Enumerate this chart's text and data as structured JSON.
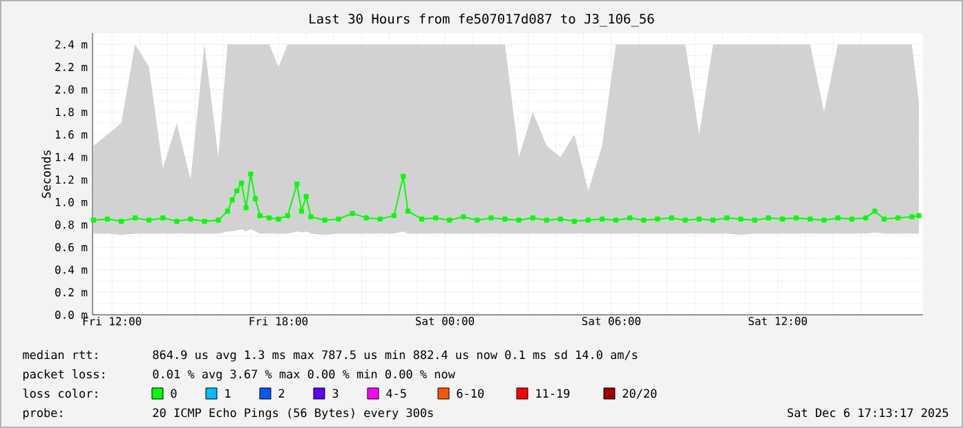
{
  "chart_data": {
    "type": "line",
    "title": "Last 30 Hours from fe507017d087 to J3_106_56",
    "ylabel": "Seconds",
    "legend_title": "loss color:",
    "legend": "bottom",
    "grid": true,
    "marker": "square",
    "line_style": "solid",
    "xlim": [
      "2025-12-05T11:18",
      "2025-12-06T17:14"
    ],
    "xticks": [
      {
        "value": "2025-12-05T12:00",
        "label": "Fri 12:00"
      },
      {
        "value": "2025-12-05T15:00",
        "label": null
      },
      {
        "value": "2025-12-05T18:00",
        "label": "Fri 18:00"
      },
      {
        "value": "2025-12-05T21:00",
        "label": null
      },
      {
        "value": "2025-12-06T00:00",
        "label": "Sat 00:00"
      },
      {
        "value": "2025-12-06T03:00",
        "label": null
      },
      {
        "value": "2025-12-06T06:00",
        "label": "Sat 06:00"
      },
      {
        "value": "2025-12-06T09:00",
        "label": null
      },
      {
        "value": "2025-12-06T12:00",
        "label": "Sat 12:00"
      },
      {
        "value": "2025-12-06T15:00",
        "label": null
      }
    ],
    "ylim": [
      0,
      2.5
    ],
    "yticks": [
      {
        "value": 0,
        "label": "0.0 m"
      },
      {
        "value": 0.2,
        "label": "0.2 m"
      },
      {
        "value": 0.4,
        "label": "0.4 m"
      },
      {
        "value": 0.6,
        "label": "0.6 m"
      },
      {
        "value": 0.8,
        "label": "0.8 m"
      },
      {
        "value": 1.0,
        "label": "1.0 m"
      },
      {
        "value": 1.2,
        "label": "1.2 m"
      },
      {
        "value": 1.4,
        "label": "1.4 m"
      },
      {
        "value": 1.6,
        "label": "1.6 m"
      },
      {
        "value": 1.8,
        "label": "1.8 m"
      },
      {
        "value": 2.0,
        "label": "2.0 m"
      },
      {
        "value": 2.2,
        "label": "2.2 m"
      },
      {
        "value": 2.4,
        "label": "2.4 m"
      }
    ],
    "x": [
      "2025-12-05T11:20",
      "2025-12-05T11:50",
      "2025-12-05T12:20",
      "2025-12-05T12:50",
      "2025-12-05T13:20",
      "2025-12-05T13:50",
      "2025-12-05T14:20",
      "2025-12-05T14:50",
      "2025-12-05T15:20",
      "2025-12-05T15:50",
      "2025-12-05T16:10",
      "2025-12-05T16:20",
      "2025-12-05T16:30",
      "2025-12-05T16:40",
      "2025-12-05T16:50",
      "2025-12-05T17:00",
      "2025-12-05T17:10",
      "2025-12-05T17:20",
      "2025-12-05T17:40",
      "2025-12-05T18:00",
      "2025-12-05T18:20",
      "2025-12-05T18:40",
      "2025-12-05T18:50",
      "2025-12-05T19:00",
      "2025-12-05T19:10",
      "2025-12-05T19:40",
      "2025-12-05T20:10",
      "2025-12-05T20:40",
      "2025-12-05T21:10",
      "2025-12-05T21:40",
      "2025-12-05T22:10",
      "2025-12-05T22:30",
      "2025-12-05T22:40",
      "2025-12-05T23:10",
      "2025-12-05T23:40",
      "2025-12-06T00:10",
      "2025-12-06T00:40",
      "2025-12-06T01:10",
      "2025-12-06T01:40",
      "2025-12-06T02:10",
      "2025-12-06T02:40",
      "2025-12-06T03:10",
      "2025-12-06T03:40",
      "2025-12-06T04:10",
      "2025-12-06T04:40",
      "2025-12-06T05:10",
      "2025-12-06T05:40",
      "2025-12-06T06:10",
      "2025-12-06T06:40",
      "2025-12-06T07:10",
      "2025-12-06T07:40",
      "2025-12-06T08:10",
      "2025-12-06T08:40",
      "2025-12-06T09:10",
      "2025-12-06T09:40",
      "2025-12-06T10:10",
      "2025-12-06T10:40",
      "2025-12-06T11:10",
      "2025-12-06T11:40",
      "2025-12-06T12:10",
      "2025-12-06T12:40",
      "2025-12-06T13:10",
      "2025-12-06T13:40",
      "2025-12-06T14:10",
      "2025-12-06T14:40",
      "2025-12-06T15:10",
      "2025-12-06T15:30",
      "2025-12-06T15:50",
      "2025-12-06T16:20",
      "2025-12-06T16:50",
      "2025-12-06T17:05"
    ],
    "series": [
      {
        "name": "0",
        "color": "#00ff00",
        "values": [
          0.84,
          0.85,
          0.83,
          0.86,
          0.84,
          0.86,
          0.83,
          0.85,
          0.83,
          0.84,
          0.92,
          1.02,
          1.1,
          1.17,
          0.95,
          1.25,
          1.03,
          0.88,
          0.86,
          0.85,
          0.88,
          1.16,
          0.92,
          1.05,
          0.87,
          0.84,
          0.85,
          0.9,
          0.86,
          0.85,
          0.88,
          1.23,
          0.92,
          0.85,
          0.86,
          0.84,
          0.87,
          0.84,
          0.86,
          0.85,
          0.84,
          0.86,
          0.84,
          0.85,
          0.83,
          0.84,
          0.85,
          0.84,
          0.86,
          0.84,
          0.85,
          0.86,
          0.84,
          0.85,
          0.84,
          0.86,
          0.85,
          0.84,
          0.86,
          0.85,
          0.86,
          0.85,
          0.84,
          0.86,
          0.85,
          0.86,
          0.92,
          0.85,
          0.86,
          0.87,
          0.88
        ],
        "lower": [
          0.72,
          0.72,
          0.71,
          0.72,
          0.72,
          0.72,
          0.72,
          0.72,
          0.72,
          0.72,
          0.74,
          0.74,
          0.75,
          0.76,
          0.74,
          0.76,
          0.74,
          0.72,
          0.72,
          0.72,
          0.72,
          0.74,
          0.73,
          0.74,
          0.72,
          0.71,
          0.72,
          0.72,
          0.72,
          0.72,
          0.72,
          0.74,
          0.72,
          0.72,
          0.72,
          0.72,
          0.72,
          0.72,
          0.72,
          0.72,
          0.72,
          0.72,
          0.72,
          0.72,
          0.72,
          0.72,
          0.72,
          0.72,
          0.72,
          0.72,
          0.72,
          0.72,
          0.72,
          0.72,
          0.72,
          0.72,
          0.71,
          0.72,
          0.72,
          0.72,
          0.72,
          0.72,
          0.72,
          0.72,
          0.72,
          0.72,
          0.73,
          0.72,
          0.72,
          0.72,
          0.72
        ],
        "upper": [
          1.5,
          1.6,
          1.7,
          2.4,
          2.2,
          1.3,
          1.7,
          1.2,
          2.4,
          1.4,
          2.4,
          2.4,
          2.4,
          2.4,
          2.4,
          2.4,
          2.4,
          2.4,
          2.4,
          2.2,
          2.4,
          2.4,
          2.4,
          2.4,
          2.4,
          2.4,
          2.4,
          2.4,
          2.4,
          2.4,
          2.4,
          2.4,
          2.4,
          2.4,
          2.4,
          2.4,
          2.4,
          2.4,
          2.4,
          2.4,
          1.4,
          1.8,
          1.5,
          1.4,
          1.6,
          1.1,
          1.5,
          2.4,
          2.4,
          2.4,
          2.4,
          2.4,
          2.4,
          1.6,
          2.4,
          2.4,
          2.4,
          2.4,
          2.4,
          2.4,
          2.4,
          2.4,
          1.8,
          2.4,
          2.4,
          2.4,
          2.4,
          2.4,
          2.4,
          2.4,
          1.9
        ]
      },
      {
        "name": "1",
        "color": "#00b8ff",
        "values": [
          null,
          null,
          null,
          null,
          null,
          null,
          null,
          null,
          null,
          null,
          null,
          null,
          null,
          null,
          null,
          null,
          null,
          null,
          null,
          null,
          null,
          null,
          null,
          null,
          null,
          null,
          null,
          null,
          null,
          null,
          null,
          null,
          null,
          null,
          null,
          null,
          null,
          null,
          null,
          null,
          null,
          null,
          null,
          null,
          null,
          null,
          null,
          null,
          null,
          null,
          null,
          null,
          null,
          null,
          null,
          null,
          null,
          null,
          null,
          null,
          null,
          null,
          null,
          null,
          null,
          null,
          null,
          null,
          null,
          null,
          null
        ]
      },
      {
        "name": "2",
        "color": "#0059ff",
        "values": [
          null,
          null,
          null,
          null,
          null,
          null,
          null,
          null,
          null,
          null,
          null,
          null,
          null,
          null,
          null,
          null,
          null,
          null,
          null,
          null,
          null,
          null,
          null,
          null,
          null,
          null,
          null,
          null,
          null,
          null,
          null,
          null,
          null,
          null,
          null,
          null,
          null,
          null,
          null,
          null,
          null,
          null,
          null,
          null,
          null,
          null,
          null,
          null,
          null,
          null,
          null,
          null,
          null,
          null,
          null,
          null,
          null,
          null,
          null,
          null,
          null,
          null,
          null,
          null,
          null,
          null,
          null,
          null,
          null,
          null,
          null
        ]
      },
      {
        "name": "3",
        "color": "#5e00ff",
        "values": [
          null,
          null,
          null,
          null,
          null,
          null,
          null,
          null,
          null,
          null,
          null,
          null,
          null,
          null,
          null,
          null,
          null,
          null,
          null,
          null,
          null,
          null,
          null,
          null,
          null,
          null,
          null,
          null,
          null,
          null,
          null,
          null,
          null,
          null,
          null,
          null,
          null,
          null,
          null,
          null,
          null,
          null,
          null,
          null,
          null,
          null,
          null,
          null,
          null,
          null,
          null,
          null,
          null,
          null,
          null,
          null,
          null,
          null,
          null,
          null,
          null,
          null,
          null,
          null,
          null,
          null,
          null,
          null,
          null,
          null,
          null
        ]
      },
      {
        "name": "4-5",
        "color": "#ff00ff",
        "values": [
          null,
          null,
          null,
          null,
          null,
          null,
          null,
          null,
          null,
          null,
          null,
          null,
          null,
          null,
          null,
          null,
          null,
          null,
          null,
          null,
          null,
          null,
          null,
          null,
          null,
          null,
          null,
          null,
          null,
          null,
          null,
          null,
          null,
          null,
          null,
          null,
          null,
          null,
          null,
          null,
          null,
          null,
          null,
          null,
          null,
          null,
          null,
          null,
          null,
          null,
          null,
          null,
          null,
          null,
          null,
          null,
          null,
          null,
          null,
          null,
          null,
          null,
          null,
          null,
          null,
          null,
          null,
          null,
          null,
          null,
          null
        ]
      },
      {
        "name": "6-10",
        "color": "#ff5500",
        "values": [
          null,
          null,
          null,
          null,
          null,
          null,
          null,
          null,
          null,
          null,
          null,
          null,
          null,
          null,
          null,
          null,
          null,
          null,
          null,
          null,
          null,
          null,
          null,
          null,
          null,
          null,
          null,
          null,
          null,
          null,
          null,
          null,
          null,
          null,
          null,
          null,
          null,
          null,
          null,
          null,
          null,
          null,
          null,
          null,
          null,
          null,
          null,
          null,
          null,
          null,
          null,
          null,
          null,
          null,
          null,
          null,
          null,
          null,
          null,
          null,
          null,
          null,
          null,
          null,
          null,
          null,
          null,
          null,
          null,
          null,
          null
        ]
      },
      {
        "name": "11-19",
        "color": "#ff0000",
        "values": [
          null,
          null,
          null,
          null,
          null,
          null,
          null,
          null,
          null,
          null,
          null,
          null,
          null,
          null,
          null,
          null,
          null,
          null,
          null,
          null,
          null,
          null,
          null,
          null,
          null,
          null,
          null,
          null,
          null,
          null,
          null,
          null,
          null,
          null,
          null,
          null,
          null,
          null,
          null,
          null,
          null,
          null,
          null,
          null,
          null,
          null,
          null,
          null,
          null,
          null,
          null,
          null,
          null,
          null,
          null,
          null,
          null,
          null,
          null,
          null,
          null,
          null,
          null,
          null,
          null,
          null,
          null,
          null,
          null,
          null,
          null
        ]
      },
      {
        "name": "20/20",
        "color": "#a10000",
        "values": [
          null,
          null,
          null,
          null,
          null,
          null,
          null,
          null,
          null,
          null,
          null,
          null,
          null,
          null,
          null,
          null,
          null,
          null,
          null,
          null,
          null,
          null,
          null,
          null,
          null,
          null,
          null,
          null,
          null,
          null,
          null,
          null,
          null,
          null,
          null,
          null,
          null,
          null,
          null,
          null,
          null,
          null,
          null,
          null,
          null,
          null,
          null,
          null,
          null,
          null,
          null,
          null,
          null,
          null,
          null,
          null,
          null,
          null,
          null,
          null,
          null,
          null,
          null,
          null,
          null,
          null,
          null,
          null,
          null,
          null,
          null
        ]
      }
    ],
    "annotations": [
      "median rtt:",
      "864.9 us avg 1.3 ms max 787.5 us min 882.4 us now 0.1 ms sd 14.0 am/s",
      "packet loss:",
      "0.01 % avg 3.67 % max 0.00 % min 0.00 % now",
      "probe:",
      "20 ICMP Echo Pings (56 Bytes) every 300s",
      "Sat Dec 6 17:13:17 2025"
    ]
  }
}
